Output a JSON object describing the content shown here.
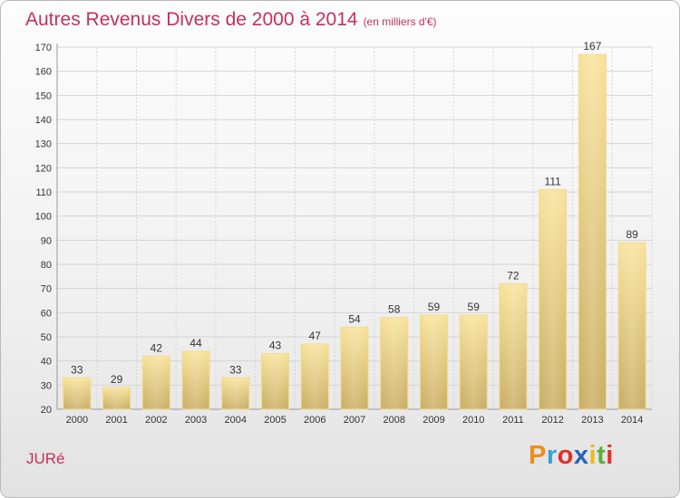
{
  "header": {
    "title": "Autres Revenus Divers de 2000 à 2014",
    "subtitle": "(en milliers d'€)"
  },
  "footer": {
    "town": "JURé",
    "logo_text": "Proxiti",
    "logo_colors": [
      "#f08c1a",
      "#3aa0d8",
      "#e0302a",
      "#2a62b8",
      "#f0b81a",
      "#58b03a",
      "#e0302a"
    ]
  },
  "chart_data": {
    "type": "bar",
    "title": "Autres Revenus Divers de 2000 à 2014",
    "subtitle": "(en milliers d'€)",
    "xlabel": "",
    "ylabel": "",
    "categories": [
      "2000",
      "2001",
      "2002",
      "2003",
      "2004",
      "2005",
      "2006",
      "2007",
      "2008",
      "2009",
      "2010",
      "2011",
      "2012",
      "2013",
      "2014"
    ],
    "values": [
      33,
      29,
      42,
      44,
      33,
      43,
      47,
      54,
      58,
      59,
      59,
      72,
      111,
      167,
      89
    ],
    "ylim": [
      20,
      170
    ],
    "yticks": [
      20,
      30,
      40,
      50,
      60,
      70,
      80,
      90,
      100,
      110,
      120,
      130,
      140,
      150,
      160,
      170
    ],
    "grid": true,
    "legend": "none",
    "colors": {
      "bar_light": "#f8e29a",
      "bar_dark": "#c9ad62",
      "bar_edge": "#f3d98c",
      "grid": "#d4d4d4",
      "axis": "#999999",
      "text": "#333333"
    }
  }
}
